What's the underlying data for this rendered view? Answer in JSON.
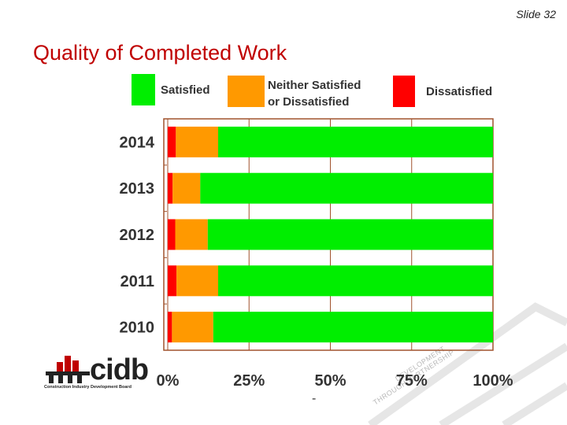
{
  "slide": {
    "number_label": "Slide 32",
    "title": "Quality of Completed Work",
    "footnote_dash": "-"
  },
  "logo": {
    "name": "cidb",
    "subtitle": "Construction Industry Development Board"
  },
  "watermark": {
    "line1": "DEVELOPMENT",
    "line2": "THROUGH PARTNERSHIP"
  },
  "chart_data": {
    "type": "bar",
    "orientation": "horizontal",
    "stacked": true,
    "percent": true,
    "categories": [
      "2014",
      "2013",
      "2012",
      "2011",
      "2010"
    ],
    "series": [
      {
        "name": "Dissatisfied",
        "color": "#ff0000",
        "values": [
          2.5,
          1.5,
          2.3,
          2.7,
          1.3
        ]
      },
      {
        "name": "Neither Satisfied or Dissatisfied",
        "name_lines": [
          "Neither Satisfied",
          "or Dissatisfied"
        ],
        "color": "#ff9900",
        "values": [
          13.0,
          8.5,
          10.0,
          12.8,
          12.7
        ]
      },
      {
        "name": "Satisfied",
        "color": "#00ee00",
        "values": [
          84.5,
          90.0,
          87.7,
          84.5,
          86.0
        ]
      }
    ],
    "legend_order": [
      "Satisfied",
      "Neither Satisfied or Dissatisfied",
      "Dissatisfied"
    ],
    "legend_position": "top",
    "x_ticks": [
      "0%",
      "25%",
      "50%",
      "75%",
      "100%"
    ],
    "xlim": [
      0,
      100
    ],
    "grid": true
  }
}
